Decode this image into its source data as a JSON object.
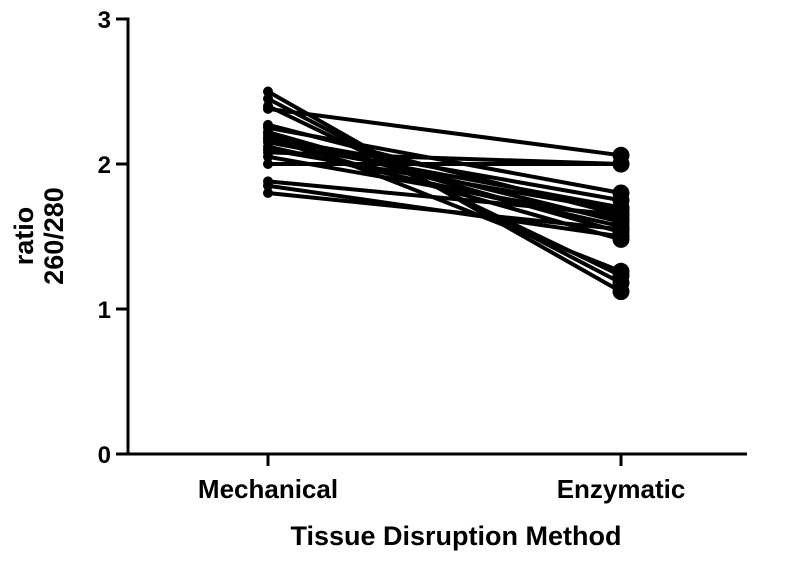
{
  "chart_data": {
    "type": "line",
    "categories": [
      "Mechanical",
      "Enzymatic"
    ],
    "xlabel": "Tissue Disruption Method",
    "ylabel_lines": [
      "ratio",
      "260/280"
    ],
    "ylim": [
      0,
      3
    ],
    "yticks": [
      "0",
      "1",
      "2",
      "3"
    ],
    "line_color": "#000000",
    "pairs": [
      [
        2.5,
        1.12
      ],
      [
        2.45,
        1.18
      ],
      [
        2.4,
        1.23
      ],
      [
        2.38,
        2.06
      ],
      [
        2.27,
        1.65
      ],
      [
        2.25,
        1.8
      ],
      [
        2.22,
        1.26
      ],
      [
        2.22,
        1.53
      ],
      [
        2.2,
        1.6
      ],
      [
        2.18,
        1.75
      ],
      [
        2.17,
        1.48
      ],
      [
        2.15,
        1.7
      ],
      [
        2.12,
        1.57
      ],
      [
        2.1,
        1.68
      ],
      [
        2.08,
        2.0
      ],
      [
        2.05,
        1.62
      ],
      [
        2.0,
        2.0
      ],
      [
        1.88,
        1.65
      ],
      [
        1.85,
        1.5
      ],
      [
        1.8,
        1.55
      ]
    ]
  }
}
